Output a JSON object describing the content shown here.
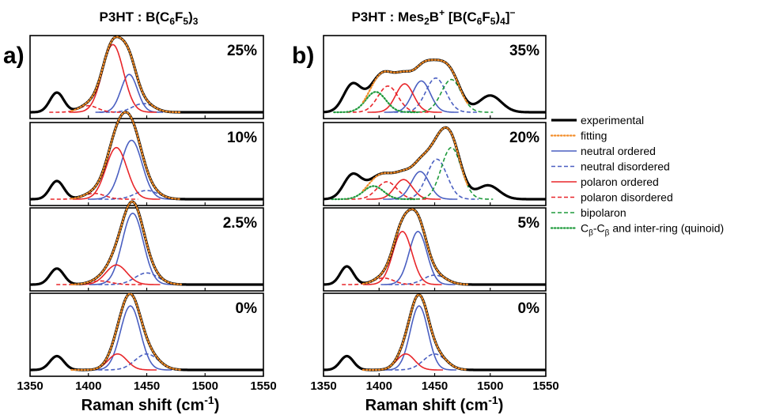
{
  "legend": {
    "items": [
      {
        "key": "experimental",
        "label": "experimental",
        "color": "#000000",
        "style": "solid-thick"
      },
      {
        "key": "fitting",
        "label": "fitting",
        "color": "#f28c28",
        "style": "dotted"
      },
      {
        "key": "neutral_ordered",
        "label": "neutral ordered",
        "color": "#4a5fc1",
        "style": "solid"
      },
      {
        "key": "neutral_disordered",
        "label": "neutral disordered",
        "color": "#4a5fc1",
        "style": "dashed"
      },
      {
        "key": "polaron_ordered",
        "label": "polaron ordered",
        "color": "#e8262a",
        "style": "solid"
      },
      {
        "key": "polaron_disordered",
        "label": "polaron disordered",
        "color": "#e8262a",
        "style": "dashed"
      },
      {
        "key": "bipolaron",
        "label": "bipolaron",
        "color": "#1f9a3c",
        "style": "dashed"
      },
      {
        "key": "quinoid",
        "label": "Cβ-Cβ and inter-ring (quinoid)",
        "label_main": "C",
        "label_sub1": "β",
        "label_mid": "-C",
        "label_sub2": "β",
        "label_rest": " and inter-ring (quinoid)",
        "color": "#1f9a3c",
        "style": "dotted"
      }
    ]
  },
  "chart_data": [
    {
      "type": "line",
      "panel_label": "a)",
      "title": "P3HT : B(C6F5)3",
      "title_parts": {
        "pre": "P3HT : B(C",
        "sub1": "6",
        "mid": "F",
        "sub2": "5",
        "post": ")",
        "sub3": "3"
      },
      "xlabel": "Raman shift (cm⁻¹)",
      "xlim": [
        1350,
        1550
      ],
      "xticks": [
        "1350",
        "1400",
        "1450",
        "1500",
        "1550"
      ],
      "ylabel": "",
      "grid": false,
      "subplots": [
        {
          "label": "25%",
          "components": [
            {
              "key": "neutral_ordered",
              "center": 1435,
              "width": 7,
              "height": 0.52
            },
            {
              "key": "neutral_disordered",
              "center": 1447,
              "width": 9,
              "height": 0.12
            },
            {
              "key": "polaron_ordered",
              "center": 1421,
              "width": 9,
              "height": 0.93
            },
            {
              "key": "polaron_disordered",
              "center": 1400,
              "width": 8,
              "height": 0.09
            }
          ],
          "extra": [
            {
              "center": 1373,
              "width": 6,
              "height": 0.27
            }
          ]
        },
        {
          "label": "10%",
          "components": [
            {
              "key": "neutral_ordered",
              "center": 1437,
              "width": 9,
              "height": 0.81
            },
            {
              "key": "neutral_disordered",
              "center": 1450,
              "width": 10,
              "height": 0.12
            },
            {
              "key": "polaron_ordered",
              "center": 1424,
              "width": 9,
              "height": 0.71
            },
            {
              "key": "polaron_disordered",
              "center": 1405,
              "width": 9,
              "height": 0.08
            }
          ],
          "extra": [
            {
              "center": 1373,
              "width": 6,
              "height": 0.25
            }
          ]
        },
        {
          "label": "2.5%",
          "components": [
            {
              "key": "neutral_ordered",
              "center": 1438,
              "width": 9,
              "height": 0.98
            },
            {
              "key": "neutral_disordered",
              "center": 1450,
              "width": 10,
              "height": 0.16
            },
            {
              "key": "polaron_ordered",
              "center": 1424,
              "width": 9,
              "height": 0.27
            },
            {
              "key": "polaron_disordered",
              "center": 1410,
              "width": 9,
              "height": 0.05
            }
          ],
          "extra": [
            {
              "center": 1373,
              "width": 6,
              "height": 0.22
            }
          ]
        },
        {
          "label": "0%",
          "components": [
            {
              "key": "neutral_ordered",
              "center": 1436,
              "width": 8.5,
              "height": 0.88
            },
            {
              "key": "neutral_disordered",
              "center": 1450,
              "width": 10,
              "height": 0.22
            },
            {
              "key": "polaron_ordered",
              "center": 1425,
              "width": 8,
              "height": 0.22
            }
          ],
          "extra": [
            {
              "center": 1373,
              "width": 6,
              "height": 0.19
            }
          ]
        }
      ]
    },
    {
      "type": "line",
      "panel_label": "b)",
      "title": "P3HT : Mes2B+ [B(C6F5)4]−",
      "title_parts": {
        "pre": "P3HT : Mes",
        "sub1": "2",
        "mid": "B",
        "sup1": "+",
        "mid2": " [B(C",
        "sub2": "6",
        "mid3": "F",
        "sub3": "5",
        "post": ")",
        "sub4": "4",
        "post2": "]",
        "sup2": "−"
      },
      "xlabel": "Raman shift (cm⁻¹)",
      "xlim": [
        1350,
        1550
      ],
      "xticks": [
        "1350",
        "1400",
        "1450",
        "1500",
        "1550"
      ],
      "ylabel": "",
      "grid": false,
      "subplots": [
        {
          "label": "35%",
          "components": [
            {
              "key": "neutral_ordered",
              "center": 1438,
              "width": 8,
              "height": 0.43
            },
            {
              "key": "neutral_disordered",
              "center": 1451,
              "width": 9,
              "height": 0.47
            },
            {
              "key": "polaron_ordered",
              "center": 1423,
              "width": 8,
              "height": 0.39
            },
            {
              "key": "polaron_disordered",
              "center": 1408,
              "width": 9,
              "height": 0.36
            },
            {
              "key": "bipolaron",
              "center": 1465,
              "width": 9,
              "height": 0.45
            },
            {
              "key": "quinoid",
              "center": 1397,
              "width": 9,
              "height": 0.28
            }
          ],
          "extra": [
            {
              "center": 1376,
              "width": 8,
              "height": 0.38
            },
            {
              "center": 1500,
              "width": 10,
              "height": 0.23
            }
          ]
        },
        {
          "label": "20%",
          "components": [
            {
              "key": "neutral_ordered",
              "center": 1437,
              "width": 8,
              "height": 0.38
            },
            {
              "key": "neutral_disordered",
              "center": 1452,
              "width": 9,
              "height": 0.55
            },
            {
              "key": "polaron_ordered",
              "center": 1422,
              "width": 8,
              "height": 0.27
            },
            {
              "key": "polaron_disordered",
              "center": 1407,
              "width": 9,
              "height": 0.24
            },
            {
              "key": "bipolaron",
              "center": 1465,
              "width": 9,
              "height": 0.71
            },
            {
              "key": "quinoid",
              "center": 1395,
              "width": 9,
              "height": 0.18
            }
          ],
          "extra": [
            {
              "center": 1376,
              "width": 8,
              "height": 0.33
            },
            {
              "center": 1498,
              "width": 10,
              "height": 0.19
            }
          ]
        },
        {
          "label": "5%",
          "components": [
            {
              "key": "neutral_ordered",
              "center": 1435,
              "width": 8,
              "height": 0.73
            },
            {
              "key": "neutral_disordered",
              "center": 1450,
              "width": 10,
              "height": 0.13
            },
            {
              "key": "polaron_ordered",
              "center": 1421,
              "width": 8.5,
              "height": 0.73
            },
            {
              "key": "polaron_disordered",
              "center": 1404,
              "width": 9,
              "height": 0.09
            }
          ],
          "extra": [
            {
              "center": 1371,
              "width": 6,
              "height": 0.25
            }
          ]
        },
        {
          "label": "0%",
          "components": [
            {
              "key": "neutral_ordered",
              "center": 1436,
              "width": 8,
              "height": 0.88
            },
            {
              "key": "neutral_disordered",
              "center": 1450,
              "width": 10,
              "height": 0.22
            },
            {
              "key": "polaron_ordered",
              "center": 1424,
              "width": 8,
              "height": 0.22
            }
          ],
          "extra": [
            {
              "center": 1371,
              "width": 6,
              "height": 0.19
            }
          ]
        }
      ]
    }
  ]
}
